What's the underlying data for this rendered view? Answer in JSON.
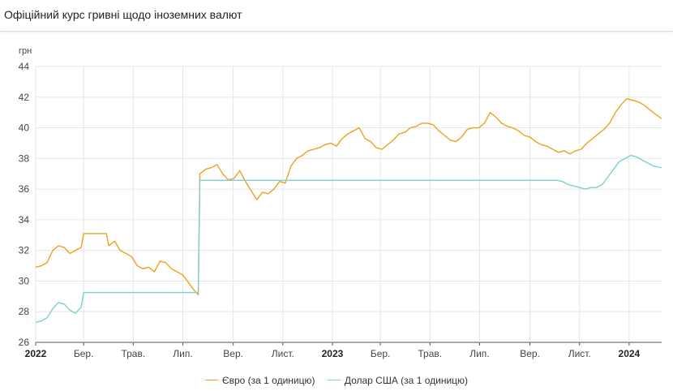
{
  "header": {
    "title": "Офіційний курс гривні щодо іноземних валют"
  },
  "chart_data": {
    "type": "line",
    "title": "Офіційний курс гривні щодо іноземних валют",
    "ylabel": "грн",
    "xlabel": "",
    "ylim": [
      26,
      44
    ],
    "yticks": [
      "26",
      "28",
      "30",
      "32",
      "34",
      "36",
      "38",
      "40",
      "42",
      "44"
    ],
    "xlim": [
      "2022-01-01",
      "2024-02-10"
    ],
    "xticks": [
      {
        "date": "2022-01-01",
        "label": "2022",
        "bold": true
      },
      {
        "date": "2022-03-01",
        "label": "Бер.",
        "bold": false
      },
      {
        "date": "2022-05-01",
        "label": "Трав.",
        "bold": false
      },
      {
        "date": "2022-07-01",
        "label": "Лип.",
        "bold": false
      },
      {
        "date": "2022-09-01",
        "label": "Вер.",
        "bold": false
      },
      {
        "date": "2022-11-01",
        "label": "Лист.",
        "bold": false
      },
      {
        "date": "2023-01-01",
        "label": "2023",
        "bold": true
      },
      {
        "date": "2023-03-01",
        "label": "Бер.",
        "bold": false
      },
      {
        "date": "2023-05-01",
        "label": "Трав.",
        "bold": false
      },
      {
        "date": "2023-07-01",
        "label": "Лип.",
        "bold": false
      },
      {
        "date": "2023-09-01",
        "label": "Вер.",
        "bold": false
      },
      {
        "date": "2023-11-01",
        "label": "Лист.",
        "bold": false
      },
      {
        "date": "2024-01-01",
        "label": "2024",
        "bold": true
      }
    ],
    "grid": true,
    "legend_position": "bottom-center",
    "series": [
      {
        "name": "Євро (за 1 одиницю)",
        "color": "#f0a01e",
        "points": [
          [
            "2022-01-01",
            30.9
          ],
          [
            "2022-01-08",
            31.0
          ],
          [
            "2022-01-15",
            31.2
          ],
          [
            "2022-01-22",
            32.0
          ],
          [
            "2022-01-29",
            32.3
          ],
          [
            "2022-02-05",
            32.2
          ],
          [
            "2022-02-12",
            31.8
          ],
          [
            "2022-02-19",
            32.0
          ],
          [
            "2022-02-26",
            32.2
          ],
          [
            "2022-03-01",
            33.1
          ],
          [
            "2022-03-08",
            33.1
          ],
          [
            "2022-03-15",
            33.1
          ],
          [
            "2022-03-22",
            33.1
          ],
          [
            "2022-03-29",
            33.1
          ],
          [
            "2022-04-01",
            32.3
          ],
          [
            "2022-04-08",
            32.6
          ],
          [
            "2022-04-15",
            32.0
          ],
          [
            "2022-04-22",
            31.8
          ],
          [
            "2022-04-29",
            31.6
          ],
          [
            "2022-05-06",
            31.0
          ],
          [
            "2022-05-13",
            30.8
          ],
          [
            "2022-05-20",
            30.9
          ],
          [
            "2022-05-27",
            30.6
          ],
          [
            "2022-06-03",
            31.3
          ],
          [
            "2022-06-10",
            31.2
          ],
          [
            "2022-06-17",
            30.8
          ],
          [
            "2022-06-24",
            30.6
          ],
          [
            "2022-07-01",
            30.4
          ],
          [
            "2022-07-08",
            29.9
          ],
          [
            "2022-07-15",
            29.4
          ],
          [
            "2022-07-20",
            29.1
          ],
          [
            "2022-07-22",
            37.0
          ],
          [
            "2022-07-29",
            37.3
          ],
          [
            "2022-08-05",
            37.4
          ],
          [
            "2022-08-12",
            37.6
          ],
          [
            "2022-08-19",
            37.0
          ],
          [
            "2022-08-26",
            36.6
          ],
          [
            "2022-09-02",
            36.7
          ],
          [
            "2022-09-09",
            37.2
          ],
          [
            "2022-09-16",
            36.5
          ],
          [
            "2022-09-23",
            35.9
          ],
          [
            "2022-09-30",
            35.3
          ],
          [
            "2022-10-07",
            35.8
          ],
          [
            "2022-10-14",
            35.7
          ],
          [
            "2022-10-21",
            36.0
          ],
          [
            "2022-10-28",
            36.5
          ],
          [
            "2022-11-04",
            36.4
          ],
          [
            "2022-11-11",
            37.5
          ],
          [
            "2022-11-18",
            38.0
          ],
          [
            "2022-11-25",
            38.2
          ],
          [
            "2022-12-02",
            38.5
          ],
          [
            "2022-12-09",
            38.6
          ],
          [
            "2022-12-16",
            38.7
          ],
          [
            "2022-12-23",
            38.9
          ],
          [
            "2022-12-30",
            39.0
          ],
          [
            "2023-01-06",
            38.8
          ],
          [
            "2023-01-13",
            39.3
          ],
          [
            "2023-01-20",
            39.6
          ],
          [
            "2023-01-27",
            39.8
          ],
          [
            "2023-02-03",
            40.0
          ],
          [
            "2023-02-10",
            39.3
          ],
          [
            "2023-02-17",
            39.1
          ],
          [
            "2023-02-24",
            38.7
          ],
          [
            "2023-03-03",
            38.6
          ],
          [
            "2023-03-10",
            38.9
          ],
          [
            "2023-03-17",
            39.2
          ],
          [
            "2023-03-24",
            39.6
          ],
          [
            "2023-03-31",
            39.7
          ],
          [
            "2023-04-07",
            40.0
          ],
          [
            "2023-04-14",
            40.1
          ],
          [
            "2023-04-21",
            40.3
          ],
          [
            "2023-04-28",
            40.3
          ],
          [
            "2023-05-05",
            40.2
          ],
          [
            "2023-05-12",
            39.8
          ],
          [
            "2023-05-19",
            39.5
          ],
          [
            "2023-05-26",
            39.2
          ],
          [
            "2023-06-02",
            39.1
          ],
          [
            "2023-06-09",
            39.4
          ],
          [
            "2023-06-16",
            39.9
          ],
          [
            "2023-06-23",
            40.0
          ],
          [
            "2023-06-30",
            40.0
          ],
          [
            "2023-07-07",
            40.3
          ],
          [
            "2023-07-14",
            41.0
          ],
          [
            "2023-07-21",
            40.7
          ],
          [
            "2023-07-28",
            40.3
          ],
          [
            "2023-08-04",
            40.1
          ],
          [
            "2023-08-11",
            40.0
          ],
          [
            "2023-08-18",
            39.8
          ],
          [
            "2023-08-25",
            39.5
          ],
          [
            "2023-09-01",
            39.4
          ],
          [
            "2023-09-08",
            39.1
          ],
          [
            "2023-09-15",
            38.9
          ],
          [
            "2023-09-22",
            38.8
          ],
          [
            "2023-09-29",
            38.6
          ],
          [
            "2023-10-06",
            38.4
          ],
          [
            "2023-10-13",
            38.5
          ],
          [
            "2023-10-20",
            38.3
          ],
          [
            "2023-10-27",
            38.5
          ],
          [
            "2023-11-03",
            38.6
          ],
          [
            "2023-11-10",
            39.0
          ],
          [
            "2023-11-17",
            39.3
          ],
          [
            "2023-11-24",
            39.6
          ],
          [
            "2023-12-01",
            39.9
          ],
          [
            "2023-12-08",
            40.3
          ],
          [
            "2023-12-15",
            41.0
          ],
          [
            "2023-12-22",
            41.5
          ],
          [
            "2023-12-29",
            41.9
          ],
          [
            "2024-01-05",
            41.8
          ],
          [
            "2024-01-12",
            41.7
          ],
          [
            "2024-01-19",
            41.5
          ],
          [
            "2024-01-26",
            41.2
          ],
          [
            "2024-02-02",
            40.9
          ],
          [
            "2024-02-10",
            40.6
          ]
        ]
      },
      {
        "name": "Долар США (за 1 одиницю)",
        "color": "#7ed0cf",
        "points": [
          [
            "2022-01-01",
            27.3
          ],
          [
            "2022-01-08",
            27.4
          ],
          [
            "2022-01-15",
            27.6
          ],
          [
            "2022-01-22",
            28.2
          ],
          [
            "2022-01-29",
            28.6
          ],
          [
            "2022-02-05",
            28.5
          ],
          [
            "2022-02-12",
            28.1
          ],
          [
            "2022-02-19",
            27.9
          ],
          [
            "2022-02-26",
            28.3
          ],
          [
            "2022-03-01",
            29.25
          ],
          [
            "2022-07-20",
            29.25
          ],
          [
            "2022-07-22",
            36.57
          ],
          [
            "2023-10-04",
            36.57
          ],
          [
            "2023-10-11",
            36.5
          ],
          [
            "2023-10-18",
            36.3
          ],
          [
            "2023-10-25",
            36.2
          ],
          [
            "2023-11-01",
            36.1
          ],
          [
            "2023-11-08",
            36.0
          ],
          [
            "2023-11-15",
            36.1
          ],
          [
            "2023-11-22",
            36.1
          ],
          [
            "2023-11-29",
            36.3
          ],
          [
            "2023-12-06",
            36.8
          ],
          [
            "2023-12-13",
            37.3
          ],
          [
            "2023-12-20",
            37.8
          ],
          [
            "2023-12-27",
            38.0
          ],
          [
            "2024-01-03",
            38.2
          ],
          [
            "2024-01-10",
            38.1
          ],
          [
            "2024-01-17",
            37.9
          ],
          [
            "2024-01-24",
            37.7
          ],
          [
            "2024-01-31",
            37.5
          ],
          [
            "2024-02-10",
            37.4
          ]
        ]
      }
    ]
  }
}
